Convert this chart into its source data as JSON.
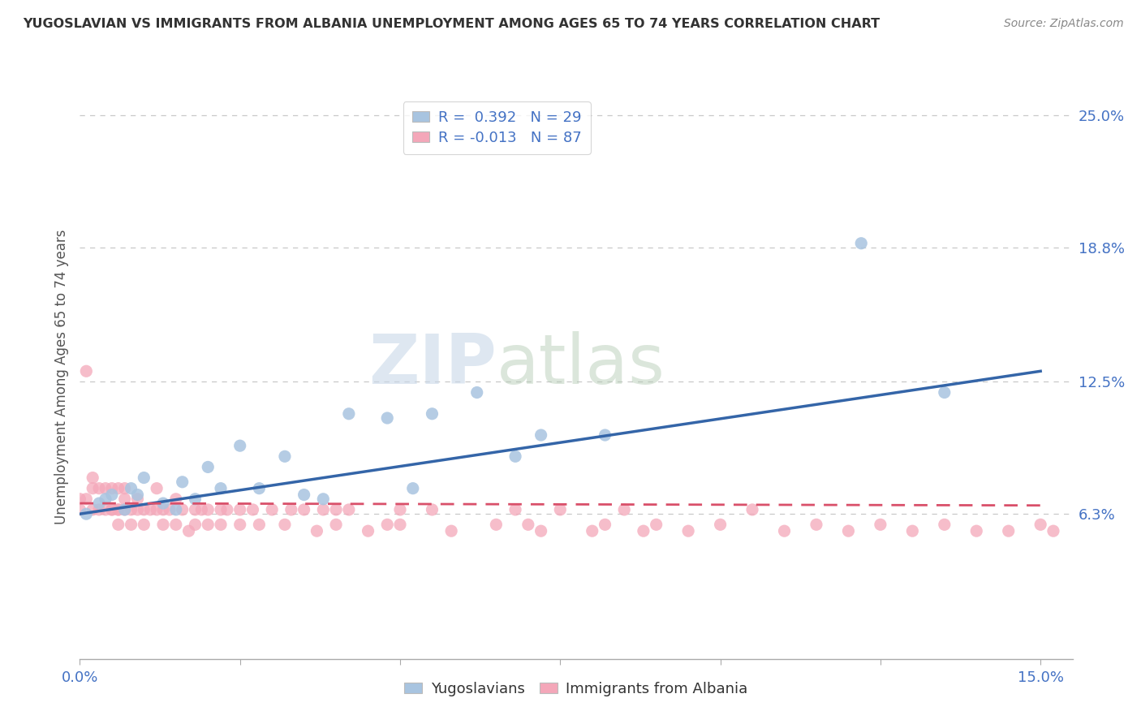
{
  "title": "YUGOSLAVIAN VS IMMIGRANTS FROM ALBANIA UNEMPLOYMENT AMONG AGES 65 TO 74 YEARS CORRELATION CHART",
  "source": "Source: ZipAtlas.com",
  "ylabel": "Unemployment Among Ages 65 to 74 years",
  "xlim": [
    0.0,
    0.155
  ],
  "ylim": [
    -0.005,
    0.26
  ],
  "xticks": [
    0.0,
    0.025,
    0.05,
    0.075,
    0.1,
    0.125,
    0.15
  ],
  "xticklabels": [
    "0.0%",
    "",
    "",
    "",
    "",
    "",
    "15.0%"
  ],
  "ytick_labels_right": [
    "25.0%",
    "18.8%",
    "12.5%",
    "6.3%"
  ],
  "ytick_vals_right": [
    0.25,
    0.188,
    0.125,
    0.063
  ],
  "R_blue": 0.392,
  "N_blue": 29,
  "R_pink": -0.013,
  "N_pink": 87,
  "watermark_zip": "ZIP",
  "watermark_atlas": "atlas",
  "blue_scatter_x": [
    0.001,
    0.003,
    0.004,
    0.005,
    0.007,
    0.008,
    0.009,
    0.01,
    0.013,
    0.015,
    0.016,
    0.018,
    0.02,
    0.022,
    0.025,
    0.028,
    0.032,
    0.035,
    0.038,
    0.042,
    0.048,
    0.052,
    0.055,
    0.062,
    0.068,
    0.072,
    0.082,
    0.122,
    0.135
  ],
  "blue_scatter_y": [
    0.063,
    0.068,
    0.07,
    0.072,
    0.065,
    0.075,
    0.072,
    0.08,
    0.068,
    0.065,
    0.078,
    0.07,
    0.085,
    0.075,
    0.095,
    0.075,
    0.09,
    0.072,
    0.07,
    0.11,
    0.108,
    0.075,
    0.11,
    0.12,
    0.09,
    0.1,
    0.1,
    0.19,
    0.12
  ],
  "pink_scatter_x": [
    0.0,
    0.0,
    0.001,
    0.001,
    0.002,
    0.002,
    0.002,
    0.003,
    0.003,
    0.004,
    0.004,
    0.005,
    0.005,
    0.005,
    0.006,
    0.006,
    0.006,
    0.006,
    0.007,
    0.007,
    0.007,
    0.008,
    0.008,
    0.009,
    0.009,
    0.01,
    0.01,
    0.011,
    0.012,
    0.012,
    0.013,
    0.013,
    0.014,
    0.015,
    0.015,
    0.016,
    0.017,
    0.018,
    0.018,
    0.019,
    0.02,
    0.02,
    0.022,
    0.022,
    0.023,
    0.025,
    0.025,
    0.027,
    0.028,
    0.03,
    0.032,
    0.033,
    0.035,
    0.037,
    0.038,
    0.04,
    0.04,
    0.042,
    0.045,
    0.048,
    0.05,
    0.05,
    0.055,
    0.058,
    0.065,
    0.068,
    0.07,
    0.072,
    0.075,
    0.08,
    0.082,
    0.085,
    0.088,
    0.09,
    0.095,
    0.1,
    0.105,
    0.11,
    0.115,
    0.12,
    0.125,
    0.13,
    0.135,
    0.14,
    0.145,
    0.15,
    0.152
  ],
  "pink_scatter_y": [
    0.07,
    0.065,
    0.13,
    0.07,
    0.08,
    0.065,
    0.075,
    0.075,
    0.065,
    0.065,
    0.075,
    0.065,
    0.075,
    0.065,
    0.065,
    0.075,
    0.065,
    0.058,
    0.065,
    0.07,
    0.075,
    0.065,
    0.058,
    0.065,
    0.07,
    0.065,
    0.058,
    0.065,
    0.065,
    0.075,
    0.058,
    0.065,
    0.065,
    0.07,
    0.058,
    0.065,
    0.055,
    0.065,
    0.058,
    0.065,
    0.058,
    0.065,
    0.058,
    0.065,
    0.065,
    0.065,
    0.058,
    0.065,
    0.058,
    0.065,
    0.058,
    0.065,
    0.065,
    0.055,
    0.065,
    0.058,
    0.065,
    0.065,
    0.055,
    0.058,
    0.065,
    0.058,
    0.065,
    0.055,
    0.058,
    0.065,
    0.058,
    0.055,
    0.065,
    0.055,
    0.058,
    0.065,
    0.055,
    0.058,
    0.055,
    0.058,
    0.065,
    0.055,
    0.058,
    0.055,
    0.058,
    0.055,
    0.058,
    0.055,
    0.055,
    0.058,
    0.055
  ],
  "blue_color": "#a8c4e0",
  "pink_color": "#f4a7b9",
  "blue_line_color": "#3465a8",
  "pink_line_color": "#d9506a",
  "background_color": "#ffffff",
  "grid_color": "#c8c8c8",
  "blue_line_x0": 0.0,
  "blue_line_y0": 0.063,
  "blue_line_x1": 0.15,
  "blue_line_y1": 0.13,
  "pink_line_x0": 0.0,
  "pink_line_y0": 0.068,
  "pink_line_x1": 0.15,
  "pink_line_y1": 0.067
}
